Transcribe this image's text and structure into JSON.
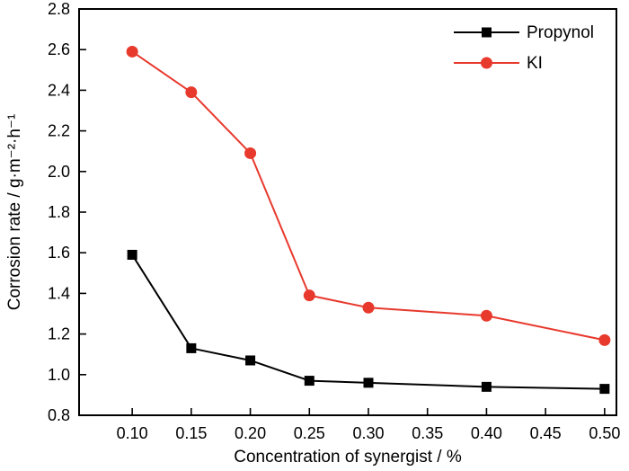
{
  "chart_data": {
    "type": "line",
    "title": "",
    "xlabel": "Concentration of synergist / %",
    "ylabel": "Corrosion rate / g·m⁻²·h⁻¹",
    "xlim": [
      0.055,
      0.51
    ],
    "ylim": [
      0.8,
      2.8
    ],
    "x_ticks": [
      0.1,
      0.15,
      0.2,
      0.25,
      0.3,
      0.35,
      0.4,
      0.45,
      0.5
    ],
    "x_tick_labels": [
      "0.10",
      "0.15",
      "0.20",
      "0.25",
      "0.30",
      "0.35",
      "0.40",
      "0.45",
      "0.50"
    ],
    "y_ticks": [
      0.8,
      1.0,
      1.2,
      1.4,
      1.6,
      1.8,
      2.0,
      2.2,
      2.4,
      2.6,
      2.8
    ],
    "y_tick_labels": [
      "0.8",
      "1.0",
      "1.2",
      "1.4",
      "1.6",
      "1.8",
      "2.0",
      "2.2",
      "2.4",
      "2.6",
      "2.8"
    ],
    "grid": false,
    "legend_position": "top-right",
    "colors": {
      "propynol": "#000000",
      "ki": "#e8392d",
      "axis": "#000000",
      "background": "#ffffff"
    },
    "series": [
      {
        "name": "Propynol",
        "color": "#000000",
        "marker": "square",
        "x": [
          0.1,
          0.15,
          0.2,
          0.25,
          0.3,
          0.4,
          0.5
        ],
        "y": [
          1.59,
          1.13,
          1.07,
          0.97,
          0.96,
          0.94,
          0.93
        ]
      },
      {
        "name": "KI",
        "color": "#e8392d",
        "marker": "circle",
        "x": [
          0.1,
          0.15,
          0.2,
          0.25,
          0.3,
          0.4,
          0.5
        ],
        "y": [
          2.59,
          2.39,
          2.09,
          1.39,
          1.33,
          1.29,
          1.17
        ]
      }
    ]
  }
}
